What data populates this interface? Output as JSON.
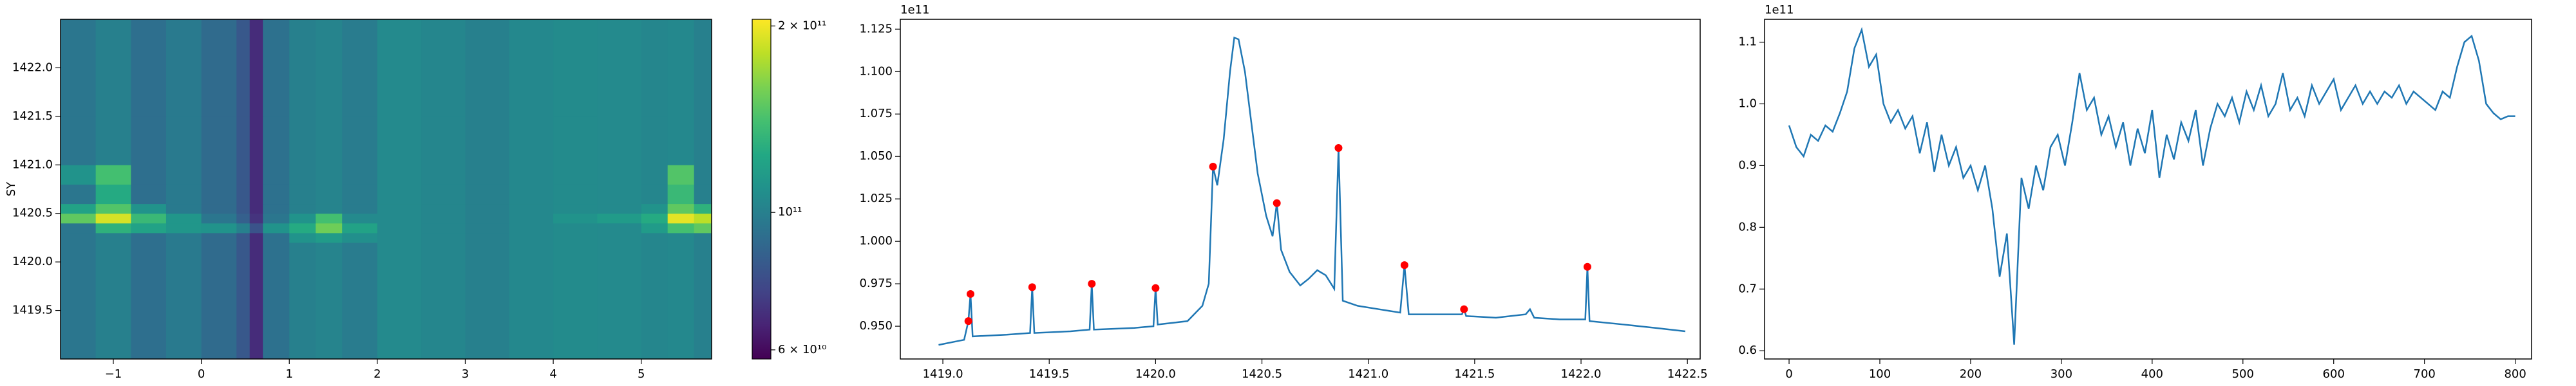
{
  "chart_data": [
    {
      "type": "heatmap",
      "ylabel": "SY",
      "x_edges": [
        -1.6,
        -1.2,
        -0.8,
        -0.4,
        0,
        0.4,
        0.55,
        0.7,
        1.0,
        1.3,
        1.6,
        2.0,
        2.5,
        3.0,
        3.5,
        4.0,
        4.5,
        5.0,
        5.3,
        5.6,
        5.8
      ],
      "y_edges": [
        1419.0,
        1419.5,
        1420.0,
        1420.2,
        1420.3,
        1420.4,
        1420.5,
        1420.6,
        1420.8,
        1421.0,
        1421.5,
        1422.0,
        1422.5
      ],
      "z": [
        [
          95000000000.0,
          100000000000.0,
          92000000000.0,
          97000000000.0,
          90000000000.0,
          82000000000.0,
          68000000000.0,
          93000000000.0,
          100000000000.0,
          102000000000.0,
          98000000000.0,
          105000000000.0,
          103000000000.0,
          100000000000.0,
          104000000000.0,
          106000000000.0,
          105000000000.0,
          103000000000.0,
          104000000000.0,
          100000000000.0
        ],
        [
          95000000000.0,
          100000000000.0,
          92000000000.0,
          97000000000.0,
          90000000000.0,
          82000000000.0,
          68000000000.0,
          93000000000.0,
          100000000000.0,
          102000000000.0,
          98000000000.0,
          105000000000.0,
          103000000000.0,
          100000000000.0,
          104000000000.0,
          106000000000.0,
          105000000000.0,
          103000000000.0,
          104000000000.0,
          100000000000.0
        ],
        [
          95000000000.0,
          100000000000.0,
          92000000000.0,
          97000000000.0,
          90000000000.0,
          82000000000.0,
          68000000000.0,
          93000000000.0,
          100000000000.0,
          102000000000.0,
          98000000000.0,
          105000000000.0,
          103000000000.0,
          100000000000.0,
          104000000000.0,
          106000000000.0,
          105000000000.0,
          103000000000.0,
          104000000000.0,
          100000000000.0
        ],
        [
          95000000000.0,
          100000000000.0,
          92000000000.0,
          97000000000.0,
          90000000000.0,
          82000000000.0,
          68000000000.0,
          93000000000.0,
          110000000000.0,
          115000000000.0,
          108000000000.0,
          105000000000.0,
          103000000000.0,
          100000000000.0,
          104000000000.0,
          106000000000.0,
          105000000000.0,
          103000000000.0,
          104000000000.0,
          100000000000.0
        ],
        [
          95000000000.0,
          130000000000.0,
          120000000000.0,
          112000000000.0,
          110000000000.0,
          100000000000.0,
          80000000000.0,
          110000000000.0,
          125000000000.0,
          155000000000.0,
          120000000000.0,
          105000000000.0,
          103000000000.0,
          100000000000.0,
          104000000000.0,
          106000000000.0,
          105000000000.0,
          115000000000.0,
          140000000000.0,
          150000000000.0
        ],
        [
          150000000000.0,
          190000000000.0,
          135000000000.0,
          112000000000.0,
          95000000000.0,
          85000000000.0,
          70000000000.0,
          95000000000.0,
          110000000000.0,
          140000000000.0,
          105000000000.0,
          105000000000.0,
          103000000000.0,
          100000000000.0,
          104000000000.0,
          110000000000.0,
          115000000000.0,
          125000000000.0,
          195000000000.0,
          180000000000.0
        ],
        [
          120000000000.0,
          145000000000.0,
          110000000000.0,
          97000000000.0,
          90000000000.0,
          82000000000.0,
          68000000000.0,
          93000000000.0,
          100000000000.0,
          102000000000.0,
          98000000000.0,
          105000000000.0,
          103000000000.0,
          100000000000.0,
          104000000000.0,
          106000000000.0,
          105000000000.0,
          110000000000.0,
          150000000000.0,
          130000000000.0
        ],
        [
          95000000000.0,
          125000000000.0,
          92000000000.0,
          97000000000.0,
          90000000000.0,
          82000000000.0,
          68000000000.0,
          93000000000.0,
          100000000000.0,
          102000000000.0,
          98000000000.0,
          105000000000.0,
          103000000000.0,
          100000000000.0,
          104000000000.0,
          106000000000.0,
          105000000000.0,
          103000000000.0,
          135000000000.0,
          100000000000.0
        ],
        [
          110000000000.0,
          140000000000.0,
          92000000000.0,
          97000000000.0,
          90000000000.0,
          82000000000.0,
          68000000000.0,
          93000000000.0,
          100000000000.0,
          102000000000.0,
          98000000000.0,
          105000000000.0,
          103000000000.0,
          100000000000.0,
          104000000000.0,
          106000000000.0,
          105000000000.0,
          103000000000.0,
          145000000000.0,
          100000000000.0
        ],
        [
          95000000000.0,
          100000000000.0,
          92000000000.0,
          97000000000.0,
          90000000000.0,
          82000000000.0,
          68000000000.0,
          93000000000.0,
          100000000000.0,
          102000000000.0,
          98000000000.0,
          105000000000.0,
          103000000000.0,
          100000000000.0,
          104000000000.0,
          106000000000.0,
          105000000000.0,
          103000000000.0,
          104000000000.0,
          100000000000.0
        ],
        [
          95000000000.0,
          100000000000.0,
          92000000000.0,
          97000000000.0,
          90000000000.0,
          82000000000.0,
          68000000000.0,
          93000000000.0,
          100000000000.0,
          102000000000.0,
          98000000000.0,
          105000000000.0,
          103000000000.0,
          100000000000.0,
          104000000000.0,
          106000000000.0,
          105000000000.0,
          103000000000.0,
          104000000000.0,
          100000000000.0
        ],
        [
          95000000000.0,
          100000000000.0,
          92000000000.0,
          97000000000.0,
          90000000000.0,
          82000000000.0,
          68000000000.0,
          93000000000.0,
          100000000000.0,
          102000000000.0,
          98000000000.0,
          105000000000.0,
          103000000000.0,
          100000000000.0,
          104000000000.0,
          106000000000.0,
          105000000000.0,
          103000000000.0,
          104000000000.0,
          100000000000.0
        ]
      ],
      "xlim": [
        -1.6,
        5.8
      ],
      "xticks": [
        {
          "value": -1,
          "label": "−1"
        },
        0,
        1,
        2,
        3,
        4,
        5
      ],
      "ylim": [
        1419.0,
        1422.5
      ],
      "yticks": [
        {
          "value": 1419.5,
          "label": "1419.5"
        },
        {
          "value": 1420,
          "label": "1420.0"
        },
        {
          "value": 1420.5,
          "label": "1420.5"
        },
        {
          "value": 1421,
          "label": "1421.0"
        },
        {
          "value": 1421.5,
          "label": "1421.5"
        },
        {
          "value": 1422,
          "label": "1422.0"
        }
      ],
      "colorbar": {
        "scale": "log",
        "colormap": "viridis",
        "zlim": [
          58000000000.0,
          205000000000.0
        ],
        "ticks": [
          {
            "value": 200000000000.0,
            "label": "2 × 10¹¹"
          },
          {
            "value": 100000000000.0,
            "label": "10¹¹"
          },
          {
            "value": 60000000000.0,
            "label": "6 × 10¹⁰"
          }
        ]
      }
    },
    {
      "type": "line",
      "y_offset": "1e11",
      "x": [
        1418.98,
        1419.06,
        1419.1,
        1419.12,
        1419.13,
        1419.14,
        1419.3,
        1419.41,
        1419.42,
        1419.43,
        1419.6,
        1419.69,
        1419.7,
        1419.71,
        1419.9,
        1419.99,
        1420.0,
        1420.01,
        1420.15,
        1420.22,
        1420.25,
        1420.27,
        1420.29,
        1420.32,
        1420.35,
        1420.37,
        1420.39,
        1420.42,
        1420.45,
        1420.48,
        1420.52,
        1420.55,
        1420.57,
        1420.59,
        1420.63,
        1420.68,
        1420.72,
        1420.76,
        1420.8,
        1420.84,
        1420.86,
        1420.88,
        1420.95,
        1421.05,
        1421.15,
        1421.17,
        1421.19,
        1421.3,
        1421.44,
        1421.45,
        1421.46,
        1421.6,
        1421.74,
        1421.76,
        1421.78,
        1421.9,
        1422.02,
        1422.03,
        1422.04,
        1422.2,
        1422.35,
        1422.49
      ],
      "series": [
        {
          "color": "#1f77b4",
          "values": [
            0.939,
            0.941,
            0.942,
            0.953,
            0.969,
            0.944,
            0.945,
            0.946,
            0.973,
            0.946,
            0.947,
            0.948,
            0.975,
            0.948,
            0.949,
            0.95,
            0.9725,
            0.951,
            0.953,
            0.962,
            0.975,
            1.044,
            1.033,
            1.06,
            1.1,
            1.12,
            1.119,
            1.1,
            1.07,
            1.04,
            1.015,
            1.003,
            1.0225,
            0.995,
            0.982,
            0.974,
            0.978,
            0.983,
            0.98,
            0.972,
            1.055,
            0.965,
            0.962,
            0.96,
            0.958,
            0.986,
            0.957,
            0.957,
            0.957,
            0.96,
            0.956,
            0.955,
            0.957,
            0.96,
            0.955,
            0.954,
            0.954,
            0.985,
            0.953,
            0.951,
            0.949,
            0.947
          ]
        }
      ],
      "markers": {
        "color": "#ff0000",
        "x": [
          1419.12,
          1419.13,
          1419.42,
          1419.7,
          1420.0,
          1420.27,
          1420.57,
          1420.86,
          1421.17,
          1421.45,
          1422.03
        ],
        "values": [
          0.953,
          0.969,
          0.973,
          0.975,
          0.9725,
          1.044,
          1.0225,
          1.055,
          0.986,
          0.96,
          0.985
        ]
      },
      "xlim": [
        1418.8,
        1422.56
      ],
      "xticks": [
        {
          "value": 1419,
          "label": "1419.0"
        },
        {
          "value": 1419.5,
          "label": "1419.5"
        },
        {
          "value": 1420,
          "label": "1420.0"
        },
        {
          "value": 1420.5,
          "label": "1420.5"
        },
        {
          "value": 1421,
          "label": "1421.0"
        },
        {
          "value": 1421.5,
          "label": "1421.5"
        },
        {
          "value": 1422,
          "label": "1422.0"
        },
        {
          "value": 1422.5,
          "label": "1422.5"
        }
      ],
      "ylim": [
        0.9307,
        1.1308
      ],
      "yticks": [
        {
          "value": 0.95,
          "label": "0.950"
        },
        0.975,
        {
          "value": 1,
          "label": "1.000"
        },
        1.025,
        {
          "value": 1.05,
          "label": "1.050"
        },
        1.075,
        {
          "value": 1.1,
          "label": "1.100"
        },
        1.125
      ]
    },
    {
      "type": "line",
      "y_offset": "1e11",
      "x": [
        0,
        8,
        16,
        24,
        32,
        40,
        48,
        56,
        64,
        72,
        80,
        88,
        96,
        104,
        112,
        120,
        128,
        136,
        144,
        152,
        160,
        168,
        176,
        184,
        192,
        200,
        208,
        216,
        224,
        232,
        240,
        248,
        256,
        264,
        272,
        280,
        288,
        296,
        304,
        312,
        320,
        328,
        336,
        344,
        352,
        360,
        368,
        376,
        384,
        392,
        400,
        408,
        416,
        424,
        432,
        440,
        448,
        456,
        464,
        472,
        480,
        488,
        496,
        504,
        512,
        520,
        528,
        536,
        544,
        552,
        560,
        568,
        576,
        584,
        592,
        600,
        608,
        616,
        624,
        632,
        640,
        648,
        656,
        664,
        672,
        680,
        688,
        696,
        704,
        712,
        720,
        728,
        736,
        744,
        752,
        760,
        768,
        776,
        784,
        792,
        800
      ],
      "series": [
        {
          "color": "#1f77b4",
          "values": [
            0.965,
            0.93,
            0.915,
            0.95,
            0.94,
            0.965,
            0.955,
            0.985,
            1.02,
            1.09,
            1.12,
            1.06,
            1.08,
            1.0,
            0.97,
            0.99,
            0.96,
            0.98,
            0.92,
            0.97,
            0.89,
            0.95,
            0.9,
            0.93,
            0.88,
            0.9,
            0.86,
            0.9,
            0.83,
            0.72,
            0.79,
            0.61,
            0.88,
            0.83,
            0.9,
            0.86,
            0.93,
            0.95,
            0.9,
            0.97,
            1.05,
            0.99,
            1.01,
            0.95,
            0.98,
            0.93,
            0.97,
            0.9,
            0.96,
            0.92,
            0.99,
            0.88,
            0.95,
            0.91,
            0.97,
            0.94,
            0.99,
            0.9,
            0.96,
            1.0,
            0.98,
            1.01,
            0.97,
            1.02,
            0.99,
            1.03,
            0.98,
            1.0,
            1.05,
            0.99,
            1.01,
            0.98,
            1.03,
            1.0,
            1.02,
            1.04,
            0.99,
            1.01,
            1.03,
            1.0,
            1.02,
            1.0,
            1.02,
            1.01,
            1.03,
            1.0,
            1.02,
            1.01,
            1.0,
            0.99,
            1.02,
            1.01,
            1.06,
            1.1,
            1.11,
            1.07,
            1.0,
            0.985,
            0.975,
            0.98,
            0.98
          ]
        }
      ],
      "xlim": [
        -27,
        818
      ],
      "xticks": [
        0,
        100,
        200,
        300,
        400,
        500,
        600,
        700,
        800
      ],
      "ylim": [
        0.5867,
        1.137
      ],
      "yticks": [
        0.6,
        0.7,
        0.8,
        0.9,
        {
          "value": 1,
          "label": "1.0"
        },
        1.1
      ]
    }
  ]
}
